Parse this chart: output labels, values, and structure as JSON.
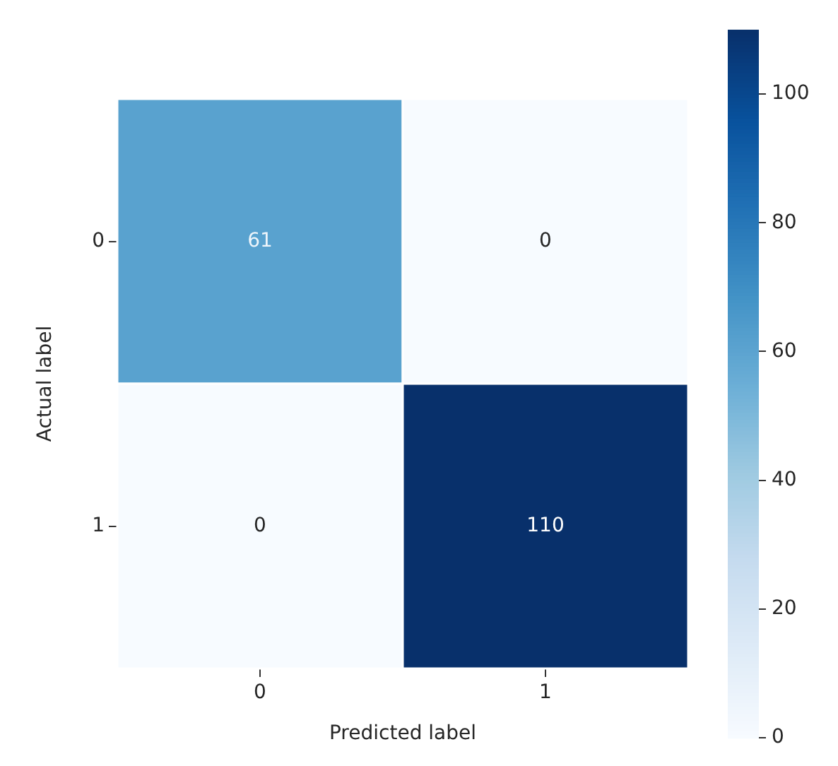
{
  "chart_data": {
    "type": "heatmap",
    "xlabel": "Predicted label",
    "ylabel": "Actual label",
    "categories": [
      "0",
      "1"
    ],
    "y_categories": [
      "0",
      "1"
    ],
    "cells": [
      [
        61,
        0
      ],
      [
        0,
        110
      ]
    ],
    "clim": [
      0,
      110
    ],
    "cticks": [
      0,
      20,
      40,
      60,
      80,
      100
    ],
    "data_labels": true
  }
}
